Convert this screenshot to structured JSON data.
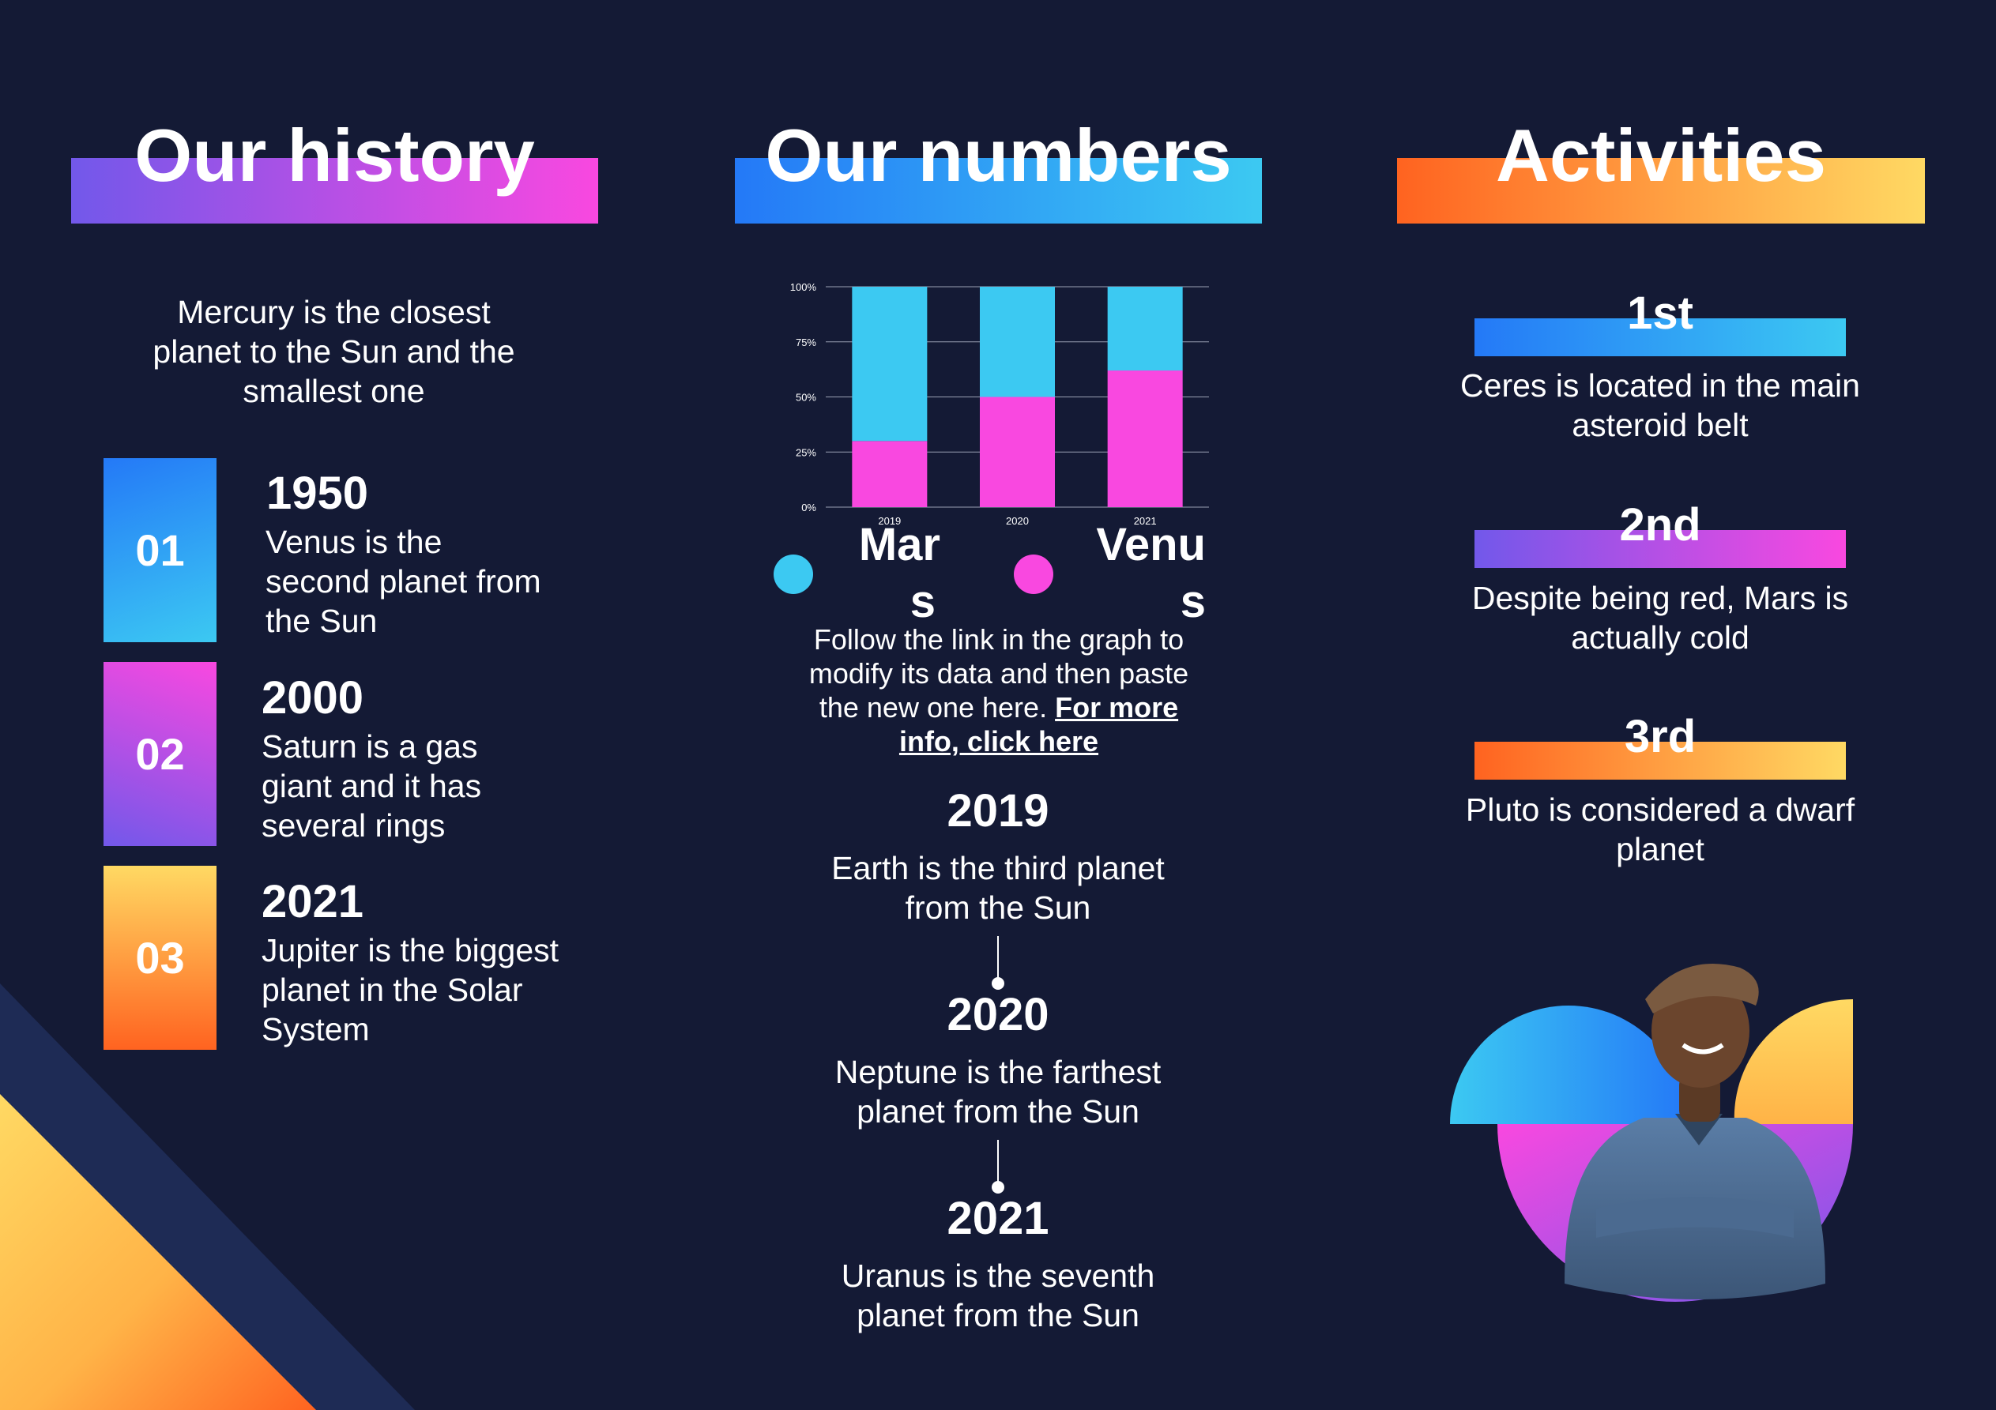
{
  "history": {
    "title": "Our history",
    "intro": "Mercury is  the closest planet to the Sun and the smallest one",
    "items": [
      {
        "num": "01",
        "year": "1950",
        "desc": "Venus is the second planet from the Sun"
      },
      {
        "num": "02",
        "year": "2000",
        "desc": "Saturn is a gas giant and it has several rings"
      },
      {
        "num": "03",
        "year": "2021",
        "desc": "Jupiter is the biggest planet in the Solar System"
      }
    ]
  },
  "numbers": {
    "title": "Our numbers",
    "follow_text": "Follow the link in the graph to modify its data and then paste the new one here.",
    "link_text": "For more info, click here",
    "timeline": [
      {
        "year": "2019",
        "desc": "Earth is the third planet from the Sun"
      },
      {
        "year": "2020",
        "desc": "Neptune is the farthest planet from the Sun"
      },
      {
        "year": "2021",
        "desc": "Uranus is the seventh planet from the Sun"
      }
    ]
  },
  "chart_data": {
    "type": "bar",
    "stacked": true,
    "percent": true,
    "categories": [
      "2019",
      "2020",
      "2021"
    ],
    "series": [
      {
        "name": "Venus",
        "color": "#f948e0",
        "values": [
          30,
          50,
          62
        ]
      },
      {
        "name": "Mars",
        "color": "#3cc9f2",
        "values": [
          70,
          50,
          38
        ]
      }
    ],
    "y_ticks": [
      "0%",
      "25%",
      "50%",
      "75%",
      "100%"
    ],
    "ylim": [
      0,
      100
    ],
    "grid": true,
    "legend": [
      {
        "label_line1": "Mar",
        "label_line2": "s",
        "color": "#3cc9f2"
      },
      {
        "label_line1": "Venu",
        "label_line2": "s",
        "color": "#f948e0"
      }
    ]
  },
  "activities": {
    "title": "Activities",
    "items": [
      {
        "rank": "1st",
        "desc": "Ceres is located in the main asteroid belt"
      },
      {
        "rank": "2nd",
        "desc": "Despite being red, Mars is actually cold"
      },
      {
        "rank": "3rd",
        "desc": "Pluto is considered a dwarf planet"
      }
    ]
  },
  "colors": {
    "background": "#141a35",
    "blue": "#2479f7",
    "cyan": "#3cc9f2",
    "purple": "#7258ea",
    "pink": "#f948e0",
    "orange": "#ff6320",
    "yellow": "#ffd963"
  },
  "illustration": {
    "icon": "person-photo-icon"
  }
}
